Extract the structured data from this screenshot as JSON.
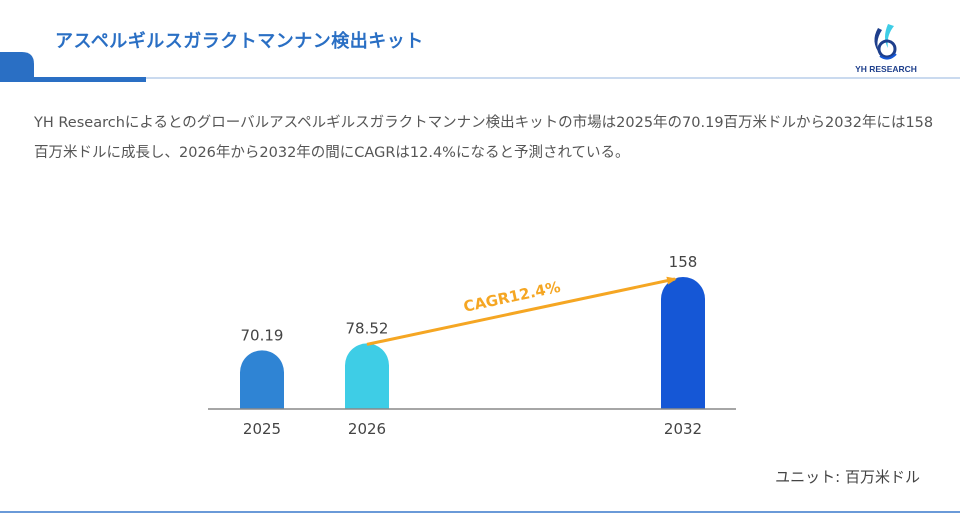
{
  "header": {
    "title": "アスペルギルスガラクトマンナン検出キット",
    "logo_text": "YH RESEARCH"
  },
  "description": "YH Researchによるとのグローバルアスペルギルスガラクトマンナン検出キットの市場は2025年の70.19百万米ドルから2032年には158百万米ドルに成長し、2026年から2032年の間にCAGRは12.4%になると予測されている。",
  "unit_label": "ユニット: 百万米ドル",
  "colors": {
    "title": "#2a6fc4",
    "bar_2025": "#2f84d4",
    "bar_2026": "#3ecde6",
    "bar_2032": "#1557d6",
    "cagr": "#f5a623"
  },
  "chart_data": {
    "type": "bar",
    "categories": [
      "2025",
      "2026",
      "2032"
    ],
    "values": [
      70.19,
      78.52,
      158
    ],
    "value_labels": [
      "70.19",
      "78.52",
      "158"
    ],
    "ylim": [
      0,
      158
    ],
    "annotation": "CAGR12.4%",
    "grid": false
  }
}
